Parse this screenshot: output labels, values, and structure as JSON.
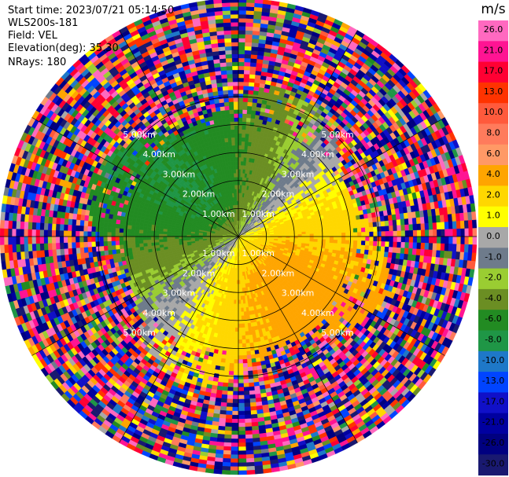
{
  "header": {
    "start_time": "Start time: 2023/07/21 05:14:50",
    "instrument": "WLS200s-181",
    "field": "Field: VEL",
    "elevation": "Elevation(deg): 35.30",
    "nrays": "NRays: 180"
  },
  "chart_data": {
    "type": "heatmap",
    "projection": "polar-ppi",
    "field": "VEL",
    "nrays": 180,
    "elevation_deg": 35.3,
    "max_range_km": 5.0,
    "range_rings_km": [
      1,
      2,
      3,
      4,
      5
    ],
    "range_ring_labels": [
      "1.00km",
      "2.00km",
      "3.00km",
      "4.00km",
      "5.00km"
    ],
    "spokes_deg": [
      0,
      30,
      60,
      90,
      120,
      150,
      180,
      210,
      240,
      270,
      300,
      330
    ],
    "colorbar": {
      "unit": "m/s",
      "vmin": -30,
      "vmax": 30,
      "ticks": [
        "26.0",
        "21.0",
        "17.0",
        "13.0",
        "10.0",
        "8.0",
        "6.0",
        "4.0",
        "2.0",
        "1.0",
        "0.0",
        "-1.0",
        "-2.0",
        "-4.0",
        "-6.0",
        "-8.0",
        "-10.0",
        "-13.0",
        "-17.0",
        "-21.0",
        "-26.0",
        "-30.0"
      ],
      "colors": [
        "#ff69c0",
        "#ff1493",
        "#ff0033",
        "#ff3300",
        "#ff5a3c",
        "#ff7b5c",
        "#ff9966",
        "#ffa500",
        "#ffd700",
        "#ffff00",
        "#a8a8a8",
        "#6e7b8b",
        "#9acd32",
        "#6b8e23",
        "#228b22",
        "#1f9646",
        "#1e78c8",
        "#0044ff",
        "#1010c8",
        "#0000a0",
        "#000080",
        "#191970"
      ]
    },
    "wind_pattern": {
      "toward_sector_dir_deg": 135,
      "away_sector_dir_deg": 315,
      "toward_peak_ms": 5,
      "away_peak_ms": -6
    }
  }
}
